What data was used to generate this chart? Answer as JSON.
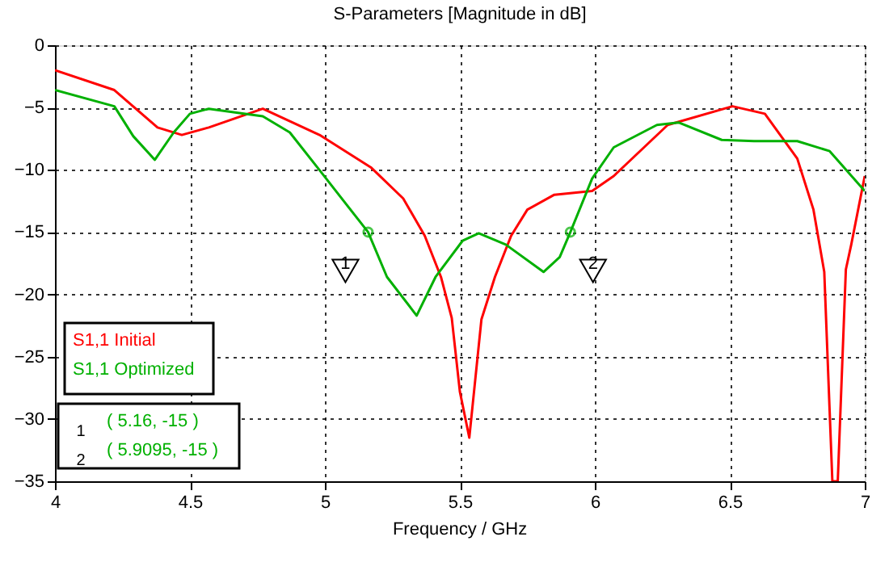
{
  "chart_data": {
    "type": "line",
    "title": "S-Parameters [Magnitude in dB]",
    "xlabel": "Frequency / GHz",
    "xlim": [
      4,
      7
    ],
    "xticks": [
      4,
      4.5,
      5,
      5.5,
      6,
      6.5,
      7
    ],
    "ylim": [
      -35,
      0
    ],
    "yticks": [
      -35,
      -30,
      -25,
      -20,
      -15,
      -10,
      -5,
      0
    ],
    "grid": true,
    "legend": "bottom left",
    "line_style": "solid",
    "marker": "none",
    "series": [
      {
        "name": "S1,1 Initial",
        "color": "#ff0000",
        "x": [
          4.0,
          4.22,
          4.38,
          4.47,
          4.57,
          4.77,
          4.98,
          5.17,
          5.29,
          5.37,
          5.43,
          5.47,
          5.5,
          5.535,
          5.58,
          5.63,
          5.69,
          5.75,
          5.85,
          5.99,
          6.07,
          6.27,
          6.51,
          6.63,
          6.75,
          6.81,
          6.85,
          6.88,
          6.9,
          6.93,
          6.95,
          7.0
        ],
        "values": [
          -2.0,
          -3.6,
          -6.6,
          -7.2,
          -6.6,
          -5.1,
          -7.2,
          -9.8,
          -12.3,
          -15.3,
          -18.6,
          -21.9,
          -27.8,
          -31.5,
          -22,
          -18.6,
          -15.3,
          -13.2,
          -12,
          -11.7,
          -10.5,
          -6.4,
          -4.9,
          -5.5,
          -9.1,
          -13.2,
          -18.2,
          -35,
          -35,
          -18,
          -16,
          -10.5
        ]
      },
      {
        "name": "S1,1 Optimized",
        "color": "#00b000",
        "x": [
          4.0,
          4.22,
          4.29,
          4.37,
          4.44,
          4.5,
          4.57,
          4.77,
          4.87,
          4.99,
          5.16,
          5.23,
          5.34,
          5.41,
          5.51,
          5.57,
          5.67,
          5.81,
          5.87,
          5.9095,
          5.99,
          6.07,
          6.23,
          6.31,
          6.47,
          6.59,
          6.75,
          6.87,
          7.0
        ],
        "values": [
          -3.6,
          -4.9,
          -7.3,
          -9.2,
          -7.0,
          -5.5,
          -5.1,
          -5.7,
          -7.0,
          -10.3,
          -15,
          -18.6,
          -21.7,
          -18.6,
          -15.7,
          -15.1,
          -16,
          -18.2,
          -17,
          -15,
          -10.7,
          -8.2,
          -6.4,
          -6.2,
          -7.6,
          -7.7,
          -7.7,
          -8.5,
          -11.7
        ]
      }
    ],
    "annotations": [
      {
        "text": "1",
        "x": 5.16,
        "y": -15
      },
      {
        "text": "2",
        "x": 5.9095,
        "y": -15
      },
      "( 5.16, -15 )",
      "( 5.9095, -15 )"
    ]
  }
}
